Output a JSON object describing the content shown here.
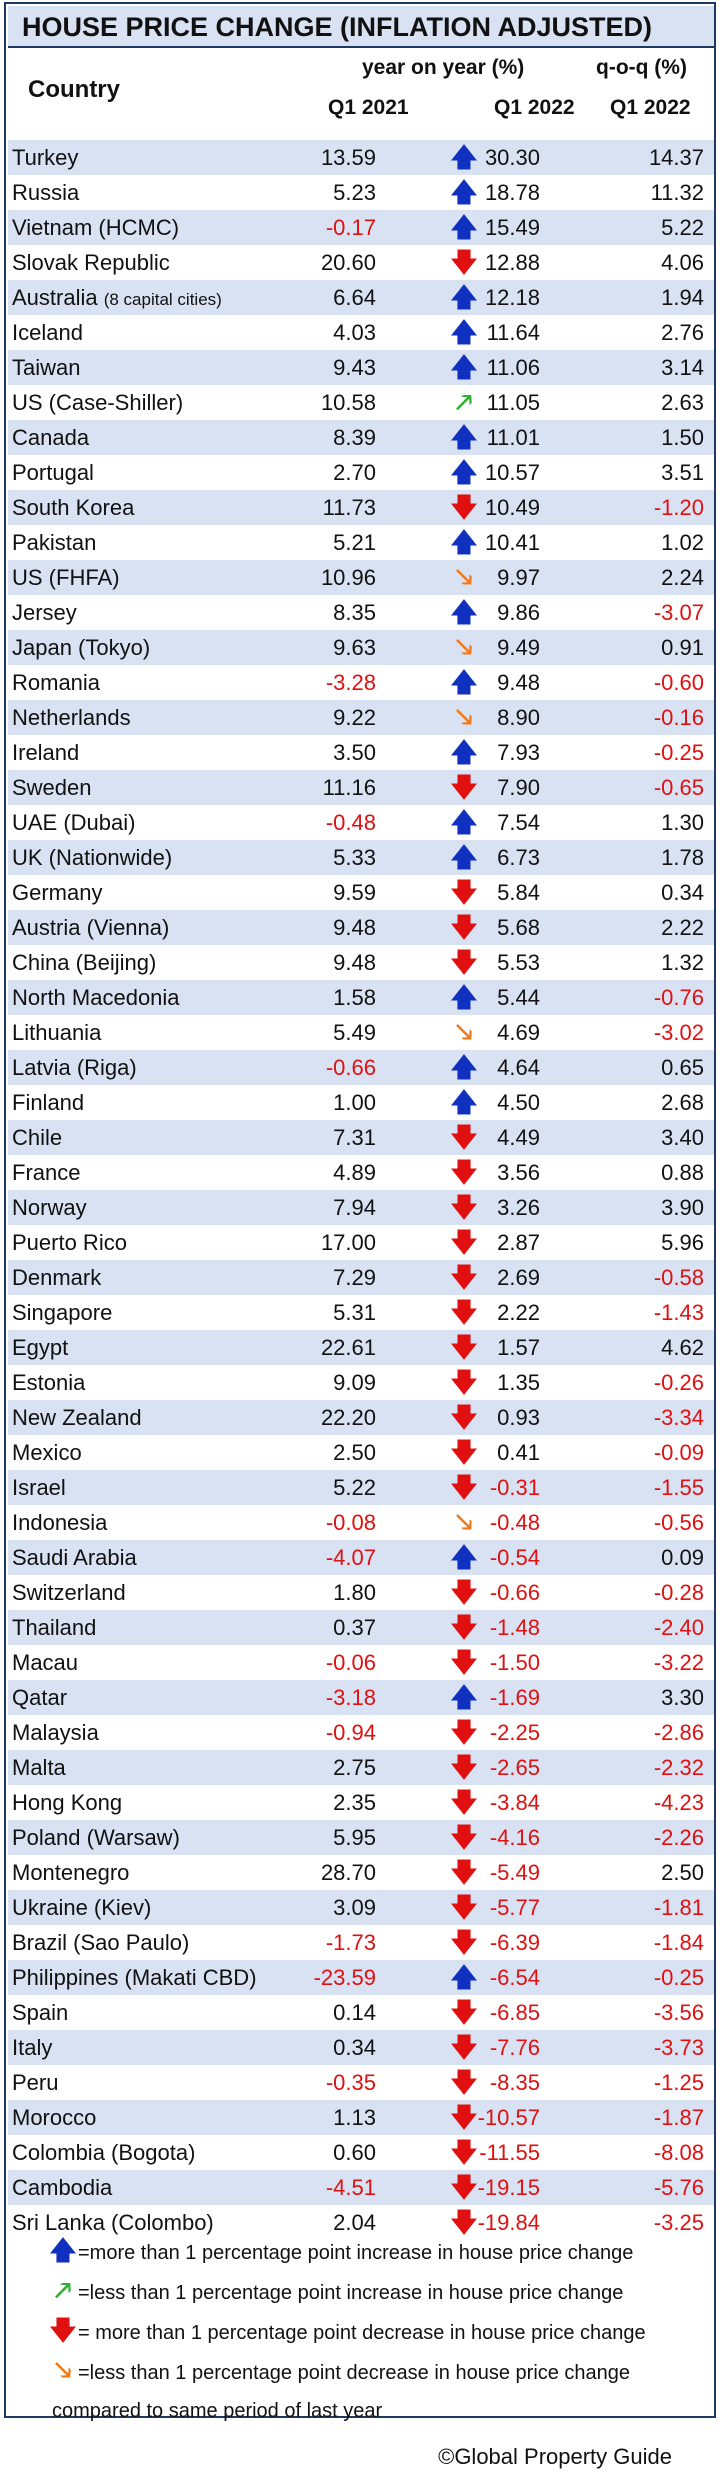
{
  "title": "HOUSE PRICE CHANGE (INFLATION ADJUSTED)",
  "header": {
    "country": "Country",
    "yoy": "year on year (%)",
    "qoq": "q-o-q (%)",
    "col_2021": "Q1 2021",
    "col_2022": "Q1 2022",
    "col_qoq": "Q1 2022"
  },
  "chart_data": {
    "type": "table",
    "columns": [
      "Country",
      "Q1 2021",
      "Q1 2022",
      "q-o-q Q1 2022"
    ],
    "rows": [
      {
        "country": "Turkey",
        "y2021": "13.59",
        "trend": "up",
        "y2022": "30.30",
        "qoq": "14.37"
      },
      {
        "country": "Russia",
        "y2021": "5.23",
        "trend": "up",
        "y2022": "18.78",
        "qoq": "11.32"
      },
      {
        "country": "Vietnam (HCMC)",
        "y2021": "-0.17",
        "trend": "up",
        "y2022": "15.49",
        "qoq": "5.22"
      },
      {
        "country": "Slovak Republic",
        "y2021": "20.60",
        "trend": "down",
        "y2022": "12.88",
        "qoq": "4.06"
      },
      {
        "country": "Australia",
        "country_note": "(8 capital cities)",
        "y2021": "6.64",
        "trend": "up",
        "y2022": "12.18",
        "qoq": "1.94"
      },
      {
        "country": "Iceland",
        "y2021": "4.03",
        "trend": "up",
        "y2022": "11.64",
        "qoq": "2.76"
      },
      {
        "country": "Taiwan",
        "y2021": "9.43",
        "trend": "up",
        "y2022": "11.06",
        "qoq": "3.14"
      },
      {
        "country": "US (Case-Shiller)",
        "y2021": "10.58",
        "trend": "slight_up",
        "y2022": "11.05",
        "qoq": "2.63"
      },
      {
        "country": "Canada",
        "y2021": "8.39",
        "trend": "up",
        "y2022": "11.01",
        "qoq": "1.50"
      },
      {
        "country": "Portugal",
        "y2021": "2.70",
        "trend": "up",
        "y2022": "10.57",
        "qoq": "3.51"
      },
      {
        "country": "South Korea",
        "y2021": "11.73",
        "trend": "down",
        "y2022": "10.49",
        "qoq": "-1.20"
      },
      {
        "country": "Pakistan",
        "y2021": "5.21",
        "trend": "up",
        "y2022": "10.41",
        "qoq": "1.02"
      },
      {
        "country": "US (FHFA)",
        "y2021": "10.96",
        "trend": "slight_down",
        "y2022": "9.97",
        "qoq": "2.24"
      },
      {
        "country": "Jersey",
        "y2021": "8.35",
        "trend": "up",
        "y2022": "9.86",
        "qoq": "-3.07"
      },
      {
        "country": "Japan (Tokyo)",
        "y2021": "9.63",
        "trend": "slight_down",
        "y2022": "9.49",
        "qoq": "0.91"
      },
      {
        "country": "Romania",
        "y2021": "-3.28",
        "trend": "up",
        "y2022": "9.48",
        "qoq": "-0.60"
      },
      {
        "country": "Netherlands",
        "y2021": "9.22",
        "trend": "slight_down",
        "y2022": "8.90",
        "qoq": "-0.16"
      },
      {
        "country": "Ireland",
        "y2021": "3.50",
        "trend": "up",
        "y2022": "7.93",
        "qoq": "-0.25"
      },
      {
        "country": "Sweden",
        "y2021": "11.16",
        "trend": "down",
        "y2022": "7.90",
        "qoq": "-0.65"
      },
      {
        "country": "UAE (Dubai)",
        "y2021": "-0.48",
        "trend": "up",
        "y2022": "7.54",
        "qoq": "1.30"
      },
      {
        "country": "UK (Nationwide)",
        "y2021": "5.33",
        "trend": "up",
        "y2022": "6.73",
        "qoq": "1.78"
      },
      {
        "country": "Germany",
        "y2021": "9.59",
        "trend": "down",
        "y2022": "5.84",
        "qoq": "0.34"
      },
      {
        "country": "Austria (Vienna)",
        "y2021": "9.48",
        "trend": "down",
        "y2022": "5.68",
        "qoq": "2.22"
      },
      {
        "country": "China (Beijing)",
        "y2021": "9.48",
        "trend": "down",
        "y2022": "5.53",
        "qoq": "1.32"
      },
      {
        "country": "North Macedonia",
        "y2021": "1.58",
        "trend": "up",
        "y2022": "5.44",
        "qoq": "-0.76"
      },
      {
        "country": "Lithuania",
        "y2021": "5.49",
        "trend": "slight_down",
        "y2022": "4.69",
        "qoq": "-3.02"
      },
      {
        "country": "Latvia (Riga)",
        "y2021": "-0.66",
        "trend": "up",
        "y2022": "4.64",
        "qoq": "0.65"
      },
      {
        "country": "Finland",
        "y2021": "1.00",
        "trend": "up",
        "y2022": "4.50",
        "qoq": "2.68"
      },
      {
        "country": "Chile",
        "y2021": "7.31",
        "trend": "down",
        "y2022": "4.49",
        "qoq": "3.40"
      },
      {
        "country": "France",
        "y2021": "4.89",
        "trend": "down",
        "y2022": "3.56",
        "qoq": "0.88"
      },
      {
        "country": "Norway",
        "y2021": "7.94",
        "trend": "down",
        "y2022": "3.26",
        "qoq": "3.90"
      },
      {
        "country": "Puerto Rico",
        "y2021": "17.00",
        "trend": "down",
        "y2022": "2.87",
        "qoq": "5.96"
      },
      {
        "country": "Denmark",
        "y2021": "7.29",
        "trend": "down",
        "y2022": "2.69",
        "qoq": "-0.58"
      },
      {
        "country": "Singapore",
        "y2021": "5.31",
        "trend": "down",
        "y2022": "2.22",
        "qoq": "-1.43"
      },
      {
        "country": "Egypt",
        "y2021": "22.61",
        "trend": "down",
        "y2022": "1.57",
        "qoq": "4.62"
      },
      {
        "country": "Estonia",
        "y2021": "9.09",
        "trend": "down",
        "y2022": "1.35",
        "qoq": "-0.26"
      },
      {
        "country": "New Zealand",
        "y2021": "22.20",
        "trend": "down",
        "y2022": "0.93",
        "qoq": "-3.34"
      },
      {
        "country": "Mexico",
        "y2021": "2.50",
        "trend": "down",
        "y2022": "0.41",
        "qoq": "-0.09"
      },
      {
        "country": "Israel",
        "y2021": "5.22",
        "trend": "down",
        "y2022": "-0.31",
        "qoq": "-1.55"
      },
      {
        "country": "Indonesia",
        "y2021": "-0.08",
        "trend": "slight_down",
        "y2022": "-0.48",
        "qoq": "-0.56"
      },
      {
        "country": "Saudi Arabia",
        "y2021": "-4.07",
        "trend": "up",
        "y2022": "-0.54",
        "qoq": "0.09"
      },
      {
        "country": "Switzerland",
        "y2021": "1.80",
        "trend": "down",
        "y2022": "-0.66",
        "qoq": "-0.28"
      },
      {
        "country": "Thailand",
        "y2021": "0.37",
        "trend": "down",
        "y2022": "-1.48",
        "qoq": "-2.40"
      },
      {
        "country": "Macau",
        "y2021": "-0.06",
        "trend": "down",
        "y2022": "-1.50",
        "qoq": "-3.22"
      },
      {
        "country": "Qatar",
        "y2021": "-3.18",
        "trend": "up",
        "y2022": "-1.69",
        "qoq": "3.30"
      },
      {
        "country": "Malaysia",
        "y2021": "-0.94",
        "trend": "down",
        "y2022": "-2.25",
        "qoq": "-2.86"
      },
      {
        "country": "Malta",
        "y2021": "2.75",
        "trend": "down",
        "y2022": "-2.65",
        "qoq": "-2.32"
      },
      {
        "country": "Hong Kong",
        "y2021": "2.35",
        "trend": "down",
        "y2022": "-3.84",
        "qoq": "-4.23"
      },
      {
        "country": "Poland (Warsaw)",
        "y2021": "5.95",
        "trend": "down",
        "y2022": "-4.16",
        "qoq": "-2.26"
      },
      {
        "country": "Montenegro",
        "y2021": "28.70",
        "trend": "down",
        "y2022": "-5.49",
        "qoq": "2.50"
      },
      {
        "country": "Ukraine (Kiev)",
        "y2021": "3.09",
        "trend": "down",
        "y2022": "-5.77",
        "qoq": "-1.81"
      },
      {
        "country": "Brazil (Sao Paulo)",
        "y2021": "-1.73",
        "trend": "down",
        "y2022": "-6.39",
        "qoq": "-1.84"
      },
      {
        "country": "Philippines (Makati CBD)",
        "y2021": "-23.59",
        "trend": "up",
        "y2022": "-6.54",
        "qoq": "-0.25"
      },
      {
        "country": "Spain",
        "y2021": "0.14",
        "trend": "down",
        "y2022": "-6.85",
        "qoq": "-3.56"
      },
      {
        "country": "Italy",
        "y2021": "0.34",
        "trend": "down",
        "y2022": "-7.76",
        "qoq": "-3.73"
      },
      {
        "country": "Peru",
        "y2021": "-0.35",
        "trend": "down",
        "y2022": "-8.35",
        "qoq": "-1.25"
      },
      {
        "country": "Morocco",
        "y2021": "1.13",
        "trend": "down",
        "y2022": "-10.57",
        "qoq": "-1.87"
      },
      {
        "country": "Colombia (Bogota)",
        "y2021": "0.60",
        "trend": "down",
        "y2022": "-11.55",
        "qoq": "-8.08"
      },
      {
        "country": "Cambodia",
        "y2021": "-4.51",
        "trend": "down",
        "y2022": "-19.15",
        "qoq": "-5.76"
      },
      {
        "country": "Sri Lanka (Colombo)",
        "y2021": "2.04",
        "trend": "down",
        "y2022": "-19.84",
        "qoq": "-3.25"
      }
    ]
  },
  "legend": {
    "up": "=more than 1 percentage point increase in house price change",
    "slight_up": "=less than 1 percentage point increase in house price change",
    "down": "= more than 1 percentage point decrease in house price change",
    "slight_down": "=less than 1 percentage point decrease in house price change",
    "note": "compared to same period of last year"
  },
  "colors": {
    "up": "#1030c0",
    "slight_up": "#30b030",
    "down": "#e01010",
    "slight_down": "#f07a1a",
    "negative_text": "#e01010",
    "row_band": "#d9e2f3",
    "border": "#1f3864"
  },
  "icons": {
    "up": "arrow-up-icon",
    "slight_up": "arrow-up-right-icon",
    "down": "arrow-down-icon",
    "slight_down": "arrow-down-right-icon"
  },
  "credit": "©Global Property Guide"
}
